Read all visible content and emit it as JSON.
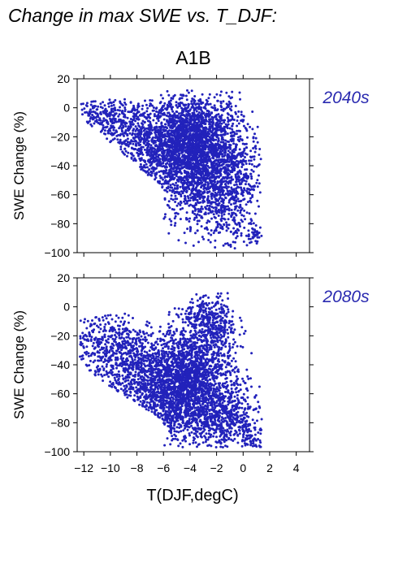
{
  "title": "Change in max SWE vs. T_DJF:",
  "scenario": "A1B",
  "colors": {
    "points": "#2222bb",
    "period_label": "#2a2ab0",
    "axis": "#000000"
  },
  "chart_data": [
    {
      "type": "scatter",
      "panel_label": "2040s",
      "ylabel": "SWE Change (%)",
      "xlabel": "",
      "xlim": [
        -12.5,
        5
      ],
      "ylim": [
        -100,
        20
      ],
      "yticks": [
        "20",
        "0",
        "−20",
        "−40",
        "−60",
        "−80",
        "−100"
      ],
      "ytick_values": [
        20,
        0,
        -20,
        -40,
        -60,
        -80,
        -100
      ],
      "xtick_values": [
        -12,
        -10,
        -8,
        -6,
        -4,
        -2,
        0,
        2,
        4
      ],
      "show_xtick_labels": false,
      "grid": false,
      "cloud": [
        {
          "x": -3.5,
          "y": -22,
          "sx": 1.6,
          "sy": 16,
          "n": 1500
        },
        {
          "x": -4.5,
          "y": -38,
          "sx": 1.8,
          "sy": 18,
          "n": 1100
        },
        {
          "x": -7.0,
          "y": -22,
          "sx": 1.8,
          "sy": 13,
          "n": 700
        },
        {
          "x": -10.5,
          "y": -8,
          "sx": 1.2,
          "sy": 9,
          "n": 300
        },
        {
          "x": -2.0,
          "y": -60,
          "sx": 1.3,
          "sy": 15,
          "n": 500
        },
        {
          "x": -0.5,
          "y": -48,
          "sx": 1.0,
          "sy": 20,
          "n": 300
        },
        {
          "x": 0.9,
          "y": -88,
          "sx": 0.3,
          "sy": 3,
          "n": 40
        }
      ]
    },
    {
      "type": "scatter",
      "panel_label": "2080s",
      "ylabel": "SWE Change (%)",
      "xlabel": "T(DJF,degC)",
      "xlim": [
        -12.5,
        5
      ],
      "ylim": [
        -100,
        20
      ],
      "yticks": [
        "20",
        "0",
        "−20",
        "−40",
        "−60",
        "−80",
        "−100"
      ],
      "ytick_values": [
        20,
        0,
        -20,
        -40,
        -60,
        -80,
        -100
      ],
      "xticks": [
        "−12",
        "−10",
        "−8",
        "−6",
        "−4",
        "−2",
        "0",
        "2",
        "4"
      ],
      "xtick_values": [
        -12,
        -10,
        -8,
        -6,
        -4,
        -2,
        0,
        2,
        4
      ],
      "show_xtick_labels": true,
      "grid": false,
      "cloud": [
        {
          "x": -3.8,
          "y": -48,
          "sx": 1.6,
          "sy": 18,
          "n": 1400
        },
        {
          "x": -5.5,
          "y": -62,
          "sx": 1.8,
          "sy": 15,
          "n": 1000
        },
        {
          "x": -8.0,
          "y": -42,
          "sx": 1.8,
          "sy": 15,
          "n": 700
        },
        {
          "x": -10.5,
          "y": -22,
          "sx": 1.3,
          "sy": 11,
          "n": 300
        },
        {
          "x": -2.5,
          "y": -12,
          "sx": 1.0,
          "sy": 11,
          "n": 400
        },
        {
          "x": -1.5,
          "y": -78,
          "sx": 1.4,
          "sy": 12,
          "n": 600
        },
        {
          "x": 0.8,
          "y": -92,
          "sx": 0.5,
          "sy": 4,
          "n": 60
        }
      ]
    }
  ]
}
